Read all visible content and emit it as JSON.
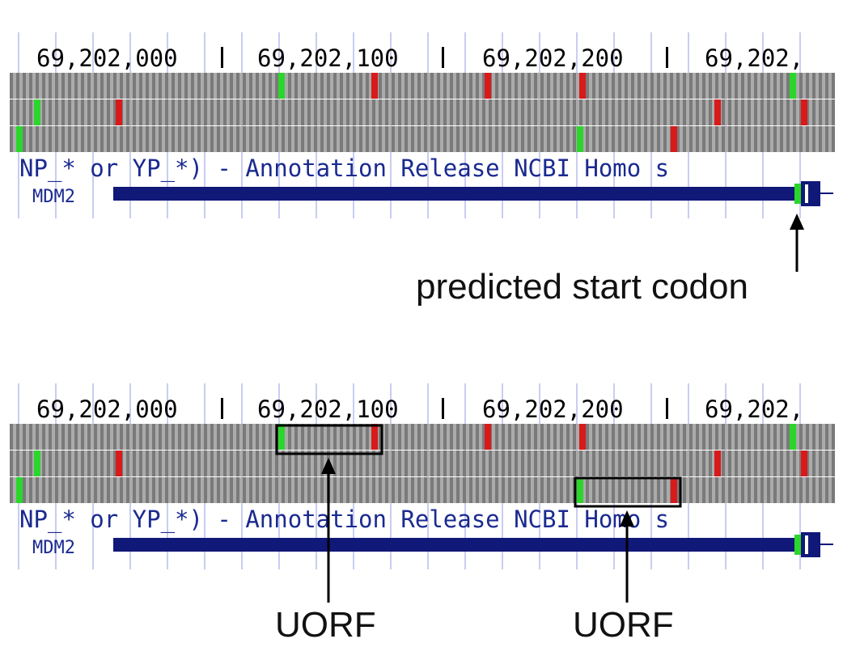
{
  "panels": [
    {
      "id": "annotated-start",
      "ruler_labels": [
        "69,202,000",
        "69,202,100",
        "69,202,200",
        "69,202,"
      ],
      "track_label": "NP_* or YP_*) - Annotation Release NCBI Homo s",
      "gene_name": "MDM2",
      "orf_boxes": []
    },
    {
      "id": "annotated-uorfs",
      "ruler_labels": [
        "69,202,000",
        "69,202,100",
        "69,202,200",
        "69,202,"
      ],
      "track_label": "NP_* or YP_*) - Annotation Release NCBI Homo s",
      "gene_name": "MDM2",
      "orf_boxes": [
        "uorf-1",
        "uorf-2"
      ]
    }
  ],
  "frames": [
    {
      "starts": [
        348,
        980
      ],
      "stops": [
        463,
        603,
        720
      ]
    },
    {
      "starts": [
        46
      ],
      "stops": [
        147,
        887,
        994
      ]
    },
    {
      "starts": [
        24,
        717
      ],
      "stops": [
        833
      ]
    }
  ],
  "annotations": {
    "start_codon": "predicted start codon",
    "uorf_1": "UORF",
    "uorf_2": "UORF"
  },
  "colors": {
    "start": "#2bd62b",
    "stop": "#d81a1a",
    "gene": "#101878",
    "label_text": "#1a2a90",
    "track_dark": "#7a7a7a",
    "track_light": "#ababab",
    "grid": "#c9cdf2"
  }
}
